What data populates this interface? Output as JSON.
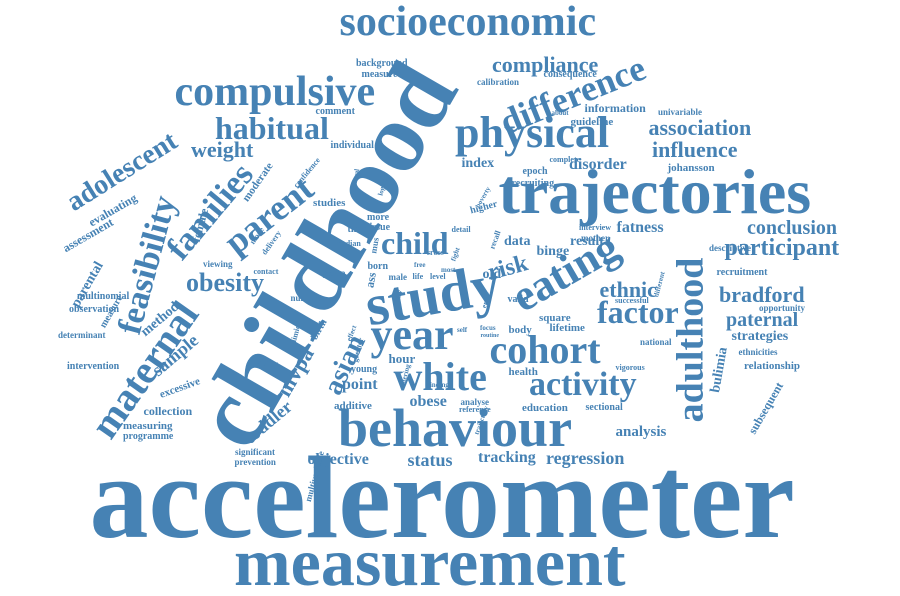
{
  "color": "#4682b4",
  "words": [
    {
      "text": "accelerometer"
    },
    {
      "text": "measurement"
    },
    {
      "text": "childhood"
    },
    {
      "text": "trajectories"
    },
    {
      "text": "behaviour"
    },
    {
      "text": "study"
    },
    {
      "text": "socioeconomic"
    },
    {
      "text": "physical"
    },
    {
      "text": "compulsive"
    },
    {
      "text": "eating"
    },
    {
      "text": "year"
    },
    {
      "text": "cohort"
    },
    {
      "text": "white"
    },
    {
      "text": "activity"
    },
    {
      "text": "adulthood"
    },
    {
      "text": "difference"
    },
    {
      "text": "maternal"
    },
    {
      "text": "feasibility"
    },
    {
      "text": "families"
    },
    {
      "text": "parent"
    },
    {
      "text": "habitual"
    },
    {
      "text": "child"
    },
    {
      "text": "factor"
    },
    {
      "text": "participant"
    },
    {
      "text": "compliance"
    },
    {
      "text": "association"
    },
    {
      "text": "influence"
    },
    {
      "text": "adolescent"
    },
    {
      "text": "obesity"
    },
    {
      "text": "weight"
    },
    {
      "text": "conclusion"
    },
    {
      "text": "bradford"
    },
    {
      "text": "paternal"
    },
    {
      "text": "asian"
    },
    {
      "text": "risk"
    },
    {
      "text": "ethnic"
    },
    {
      "text": "mvpa"
    },
    {
      "text": "sample"
    },
    {
      "text": "regression"
    },
    {
      "text": "tracking"
    },
    {
      "text": "status"
    },
    {
      "text": "objective"
    },
    {
      "text": "toddler"
    },
    {
      "text": "analysis"
    },
    {
      "text": "disorder"
    },
    {
      "text": "obese"
    },
    {
      "text": "point"
    },
    {
      "text": "bulimia"
    },
    {
      "text": "subsequent"
    },
    {
      "text": "strategies"
    },
    {
      "text": "fatness"
    },
    {
      "text": "result"
    },
    {
      "text": "binge"
    },
    {
      "text": "data"
    },
    {
      "text": "old"
    },
    {
      "text": "index"
    },
    {
      "text": "parental"
    },
    {
      "text": "method"
    },
    {
      "text": "assessment"
    },
    {
      "text": "evaluating"
    },
    {
      "text": "female"
    },
    {
      "text": "moderate"
    },
    {
      "text": "information"
    },
    {
      "text": "guideline"
    },
    {
      "text": "consequence"
    },
    {
      "text": "calibration"
    },
    {
      "text": "univariable"
    },
    {
      "text": "background"
    },
    {
      "text": "measured"
    },
    {
      "text": "comment"
    },
    {
      "text": "individual"
    },
    {
      "text": "confidence"
    },
    {
      "text": "studies"
    },
    {
      "text": "epoch"
    },
    {
      "text": "recruiting"
    },
    {
      "text": "complete"
    },
    {
      "text": "johansson"
    },
    {
      "text": "higher"
    },
    {
      "text": "more"
    },
    {
      "text": "issue"
    },
    {
      "text": "time"
    },
    {
      "text": "detail"
    },
    {
      "text": "interview"
    },
    {
      "text": "mother"
    },
    {
      "text": "descriptive"
    },
    {
      "text": "recruitment"
    },
    {
      "text": "opportunity"
    },
    {
      "text": "relationship"
    },
    {
      "text": "ethnicities"
    },
    {
      "text": "national"
    },
    {
      "text": "lifetime"
    },
    {
      "text": "square"
    },
    {
      "text": "body"
    },
    {
      "text": "health"
    },
    {
      "text": "education"
    },
    {
      "text": "sectional"
    },
    {
      "text": "vigorous"
    },
    {
      "text": "young"
    },
    {
      "text": "hour"
    },
    {
      "text": "analyse"
    },
    {
      "text": "reference"
    },
    {
      "text": "additive"
    },
    {
      "text": "excessive"
    },
    {
      "text": "collection"
    },
    {
      "text": "measuring"
    },
    {
      "text": "programme"
    },
    {
      "text": "significant"
    },
    {
      "text": "prevention"
    },
    {
      "text": "multivariable"
    },
    {
      "text": "intervention"
    },
    {
      "text": "determinant"
    },
    {
      "text": "observation"
    },
    {
      "text": "multinomial"
    },
    {
      "text": "measure"
    },
    {
      "text": "viewing"
    },
    {
      "text": "contact"
    },
    {
      "text": "deriving"
    },
    {
      "text": "birth"
    },
    {
      "text": "born"
    },
    {
      "text": "valid"
    },
    {
      "text": "successful"
    },
    {
      "text": "different"
    },
    {
      "text": "greater"
    },
    {
      "text": "group"
    },
    {
      "text": "median"
    },
    {
      "text": "delivery"
    },
    {
      "text": "number"
    },
    {
      "text": "mode"
    },
    {
      "text": "day"
    },
    {
      "text": "male"
    },
    {
      "text": "life"
    },
    {
      "text": "level"
    },
    {
      "text": "focus"
    },
    {
      "text": "routine"
    },
    {
      "text": "fight"
    },
    {
      "text": "recall"
    },
    {
      "text": "logistic"
    },
    {
      "text": "interval"
    },
    {
      "text": "poverty"
    },
    {
      "text": "cross"
    },
    {
      "text": "ass"
    },
    {
      "text": "bulimic"
    },
    {
      "text": "entering"
    },
    {
      "text": "finding"
    },
    {
      "text": "self"
    },
    {
      "text": "trajectory"
    },
    {
      "text": "effect"
    },
    {
      "text": "most"
    },
    {
      "text": "free"
    },
    {
      "text": "error"
    },
    {
      "text": "mus"
    },
    {
      "text": "about"
    }
  ]
}
